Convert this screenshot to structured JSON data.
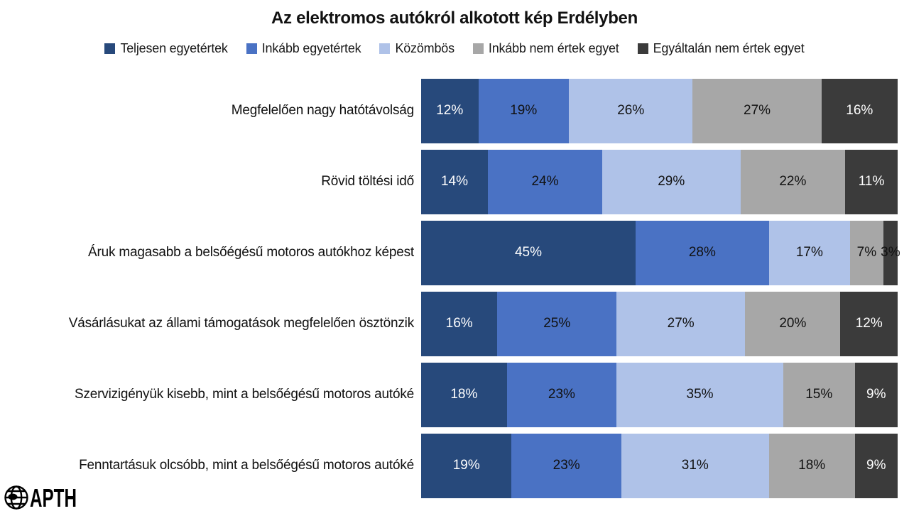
{
  "title": "Az elektromos autókról alkotott kép Erdélyben",
  "logo": {
    "text": "APTH"
  },
  "chart_data": {
    "type": "bar",
    "orientation": "horizontal-stacked",
    "title": "Az elektromos autókról alkotott kép Erdélyben",
    "xlabel": "",
    "ylabel": "",
    "xlim": [
      0,
      100
    ],
    "value_suffix": "%",
    "grid": false,
    "legend_position": "top",
    "categories": [
      "Megfelelően nagy hatótávolság",
      "Rövid töltési idő",
      "Áruk magasabb a belsőégésű motoros autókhoz képest",
      "Vásárlásukat az állami támogatások megfelelően ösztönzik",
      "Szervizigényük kisebb, mint a belsőégésű motoros autóké",
      "Fenntartásuk olcsóbb, mint a belsőégésű motoros autóké"
    ],
    "series": [
      {
        "name": "Teljesen egyetértek",
        "color": "#27497B",
        "label_color": "#FFFFFF",
        "values": [
          12,
          14,
          45,
          16,
          18,
          19
        ]
      },
      {
        "name": "Inkább egyetértek",
        "color": "#4A72C4",
        "label_color": "#111111",
        "values": [
          19,
          24,
          28,
          25,
          23,
          23
        ]
      },
      {
        "name": "Közömbös",
        "color": "#AFC2E8",
        "label_color": "#111111",
        "values": [
          26,
          29,
          17,
          27,
          35,
          31
        ]
      },
      {
        "name": "Inkább nem értek egyet",
        "color": "#A7A7A7",
        "label_color": "#111111",
        "values": [
          27,
          22,
          7,
          20,
          15,
          18
        ]
      },
      {
        "name": "Egyáltalán nem értek egyet",
        "color": "#3B3B3B",
        "label_color": "#FFFFFF",
        "values": [
          16,
          11,
          3,
          12,
          9,
          9
        ]
      }
    ],
    "series_label_color_overrides": [
      {
        "series": 4,
        "category": 2,
        "color": "#111111",
        "note": "3% label rendered dark at right edge"
      }
    ]
  }
}
